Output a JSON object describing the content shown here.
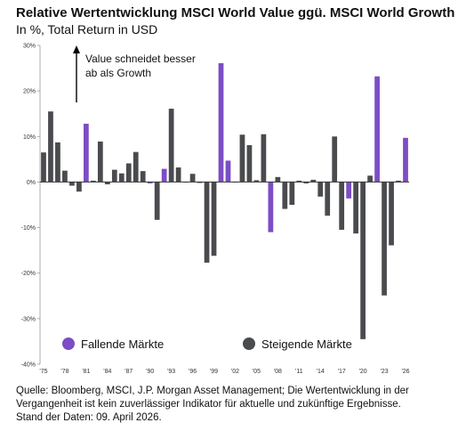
{
  "header": {
    "title": "Relative Wertentwicklung MSCI World Value ggü. MSCI World Growth",
    "subtitle": "In %, Total Return in USD"
  },
  "annotation": {
    "line1": "Value schneidet besser",
    "line2": "ab als Growth"
  },
  "legend": {
    "falling": "Fallende Märkte",
    "rising": "Steigende Märkte"
  },
  "colors": {
    "falling": "#7C4DC4",
    "rising": "#4A4B4E",
    "axis": "#333333"
  },
  "source": {
    "line1": "Quelle: Bloomberg, MSCI, J.P. Morgan Asset Management; Die Wertentwicklung in der",
    "line2": "Vergangenheit ist kein zuverlässiger Indikator für aktuelle und zukünftige Ergebnisse.",
    "line3": "Stand der Daten: 09. April 2026."
  },
  "chart_data": {
    "type": "bar",
    "ylim": [
      -40,
      30
    ],
    "yticks": [
      -40,
      -30,
      -20,
      -10,
      0,
      10,
      20,
      30
    ],
    "ytick_labels": [
      "-40%",
      "-30%",
      "-20%",
      "-10%",
      "0%",
      "10%",
      "20%",
      "30%"
    ],
    "xtick_labels": [
      "'75",
      "'78",
      "'81",
      "'84",
      "'87",
      "'90",
      "'93",
      "'96",
      "'99",
      "'02",
      "'05",
      "'08",
      "'11",
      "'14",
      "'17",
      "'20",
      "'23",
      "'26"
    ],
    "legend_position": "bottom",
    "categories": [
      1975,
      1976,
      1977,
      1978,
      1979,
      1980,
      1981,
      1982,
      1983,
      1984,
      1985,
      1986,
      1987,
      1988,
      1989,
      1990,
      1991,
      1992,
      1993,
      1994,
      1995,
      1996,
      1997,
      1998,
      1999,
      2000,
      2001,
      2002,
      2003,
      2004,
      2005,
      2006,
      2007,
      2008,
      2009,
      2010,
      2011,
      2012,
      2013,
      2014,
      2015,
      2016,
      2017,
      2018,
      2019,
      2020,
      2021,
      2022,
      2023,
      2024,
      2025,
      2026
    ],
    "values": [
      6.5,
      15.5,
      8.7,
      2.5,
      -0.8,
      -2.1,
      12.8,
      0.3,
      8.9,
      -0.5,
      2.7,
      1.9,
      4.1,
      6.6,
      2.4,
      -0.3,
      -8.3,
      2.9,
      16.1,
      3.2,
      -0.1,
      1.8,
      -0.2,
      -17.7,
      -16.2,
      26.1,
      4.7,
      -0.1,
      10.4,
      8.1,
      0.4,
      10.5,
      -11.0,
      1.1,
      -5.9,
      -5.0,
      0.3,
      -0.3,
      0.5,
      -3.2,
      -7.4,
      10.0,
      -10.5,
      -3.6,
      -11.3,
      -34.5,
      1.4,
      23.2,
      -24.9,
      -13.9,
      0.3,
      9.7
    ],
    "market": [
      "r",
      "r",
      "r",
      "r",
      "r",
      "r",
      "f",
      "r",
      "r",
      "r",
      "r",
      "r",
      "r",
      "r",
      "r",
      "f",
      "r",
      "f",
      "r",
      "r",
      "r",
      "r",
      "r",
      "r",
      "r",
      "f",
      "f",
      "r",
      "r",
      "r",
      "r",
      "r",
      "f",
      "r",
      "r",
      "r",
      "r",
      "r",
      "r",
      "r",
      "r",
      "r",
      "r",
      "f",
      "r",
      "r",
      "r",
      "f",
      "r",
      "r",
      "r",
      "f"
    ]
  }
}
